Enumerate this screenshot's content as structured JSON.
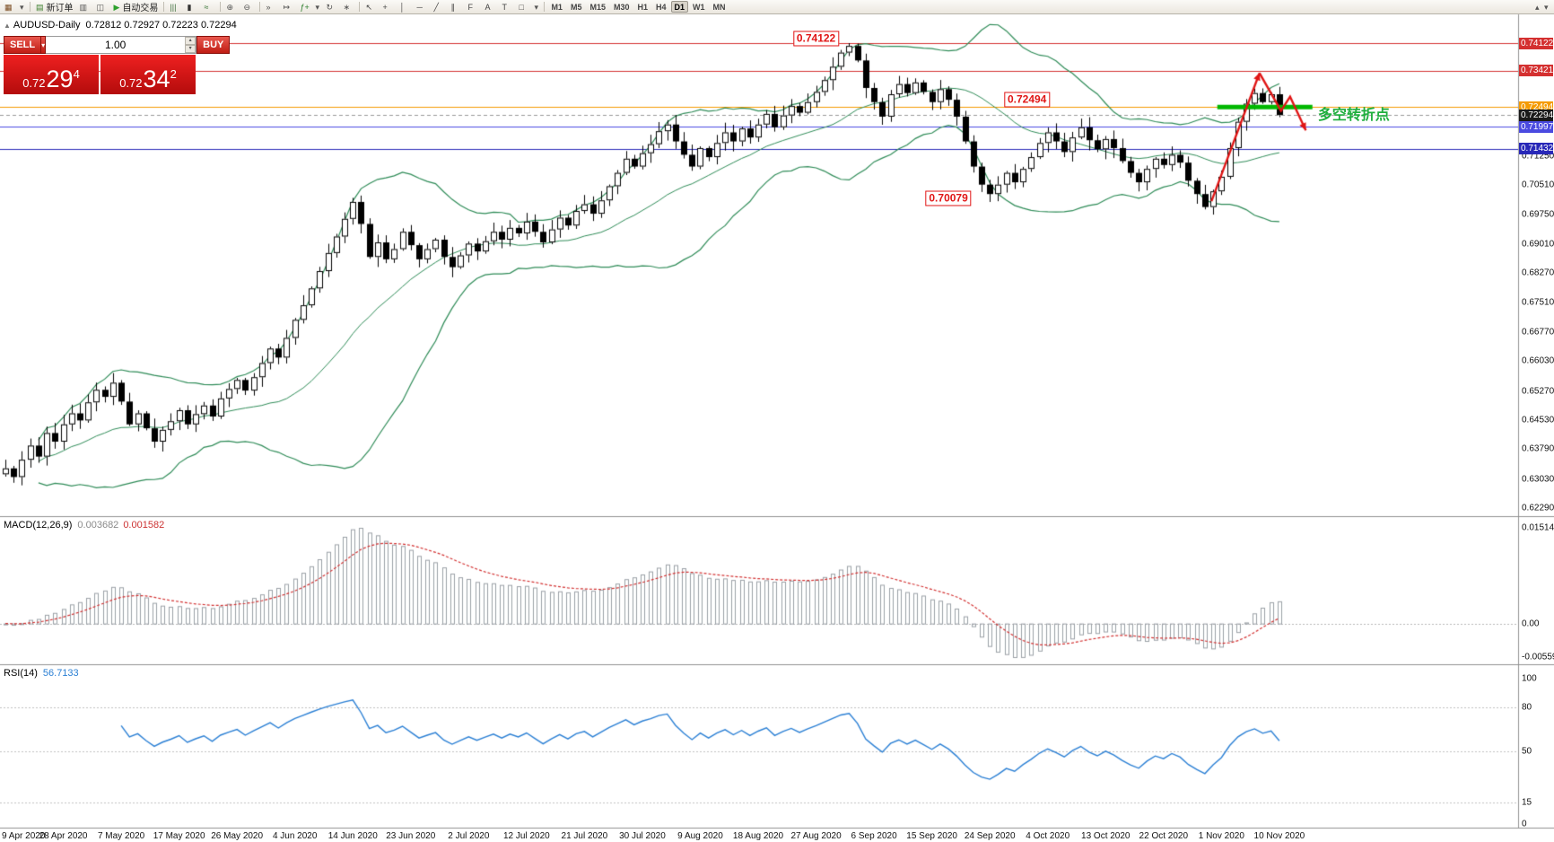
{
  "toolbar": {
    "items": [
      {
        "name": "chart-dropdown-icon",
        "glyph": "▦",
        "color": "#7a4a1f"
      },
      {
        "name": "chart-dropdown-caret-icon",
        "glyph": "▾",
        "narrow": true
      },
      {
        "sep": true
      },
      {
        "name": "new-order-button",
        "glyph": "▤",
        "label": "新订单",
        "color": "#3a7d2c"
      },
      {
        "name": "profiles-icon",
        "glyph": "▥",
        "color": "#555555"
      },
      {
        "name": "tile-windows-icon",
        "glyph": "◫",
        "color": "#555555"
      },
      {
        "name": "autotrade-button",
        "glyph": "▶",
        "label": "自动交易",
        "color": "#2ca02c"
      },
      {
        "sep": true
      },
      {
        "name": "bar-chart-icon",
        "glyph": "|||",
        "color": "#3a6d3a"
      },
      {
        "name": "candlestick-chart-icon",
        "glyph": "▮",
        "color": "#333333"
      },
      {
        "name": "line-chart-icon",
        "glyph": "≈",
        "color": "#2a6d2a"
      },
      {
        "sep": true
      },
      {
        "name": "zoom-in-icon",
        "glyph": "⊕",
        "color": "#555555"
      },
      {
        "name": "zoom-out-icon",
        "glyph": "⊖",
        "color": "#555555"
      },
      {
        "sep": true
      },
      {
        "name": "auto-scroll-icon",
        "glyph": "»",
        "color": "#555555"
      },
      {
        "name": "chart-shift-icon",
        "glyph": "↦",
        "color": "#555555"
      },
      {
        "name": "indicators-icon",
        "glyph": "ƒ+",
        "color": "#2a7d2a"
      },
      {
        "name": "indicators-caret-icon",
        "glyph": "▾",
        "narrow": true
      },
      {
        "name": "periods-icon",
        "glyph": "↻",
        "color": "#555555"
      },
      {
        "name": "templates-icon",
        "glyph": "∗",
        "color": "#555555"
      },
      {
        "sep": true
      },
      {
        "name": "cursor-icon",
        "glyph": "↖",
        "color": "#444444"
      },
      {
        "name": "crosshair-icon",
        "glyph": "+",
        "color": "#444444"
      },
      {
        "name": "vertical-line-icon",
        "glyph": "│",
        "color": "#444444"
      },
      {
        "name": "horizontal-line-icon",
        "glyph": "─",
        "color": "#444444"
      },
      {
        "name": "trendline-icon",
        "glyph": "╱",
        "color": "#444444"
      },
      {
        "name": "channel-icon",
        "glyph": "∥",
        "color": "#444444"
      },
      {
        "name": "fibonacci-icon",
        "glyph": "F",
        "color": "#444444"
      },
      {
        "name": "text-icon",
        "glyph": "A",
        "color": "#444444"
      },
      {
        "name": "text-label-icon",
        "glyph": "T",
        "color": "#444444"
      },
      {
        "name": "shapes-icon",
        "glyph": "□",
        "color": "#444444"
      },
      {
        "name": "shapes-caret-icon",
        "glyph": "▾",
        "narrow": true
      },
      {
        "sep": true
      }
    ],
    "timeframes": [
      "M1",
      "M5",
      "M15",
      "M30",
      "H1",
      "H4",
      "D1",
      "W1",
      "MN"
    ],
    "active_timeframe": "D1",
    "right_items": [
      {
        "name": "toolbar-overflow-up-icon",
        "glyph": "▴"
      },
      {
        "name": "toolbar-overflow-down-icon",
        "glyph": "▾"
      }
    ]
  },
  "chart": {
    "collapse_icon": "▲",
    "symbol_period": "AUDUSD-Daily",
    "ohlc": "0.72812 0.72927 0.72223 0.72294"
  },
  "trade_panel": {
    "sell_label": "SELL",
    "buy_label": "BUY",
    "caret": "▾",
    "volume": "1.00",
    "spin_up": "▴",
    "spin_down": "▾",
    "sell": {
      "prefix": "0.72",
      "big": "29",
      "sup": "4"
    },
    "buy": {
      "prefix": "0.72",
      "big": "34",
      "sup": "2"
    }
  },
  "price_axis": {
    "highlighted": [
      {
        "text": "0.74122",
        "bg": "#d43030"
      },
      {
        "text": "0.73421",
        "bg": "#d43030"
      },
      {
        "text": "0.72494",
        "bg": "#f59b00"
      },
      {
        "text": "0.72294",
        "bg": "#1a1a1a"
      },
      {
        "text": "0.71997",
        "bg": "#4a4ae0"
      },
      {
        "text": "0.71432",
        "bg": "#2828b8"
      }
    ],
    "plain": [
      "0.71250",
      "0.70510",
      "0.69750",
      "0.69010",
      "0.68270",
      "0.67510",
      "0.66770",
      "0.66030",
      "0.65270",
      "0.64530",
      "0.63790",
      "0.63030",
      "0.62290"
    ]
  },
  "chart_data": [
    {
      "type": "candlestick",
      "symbol": "AUDUSD",
      "timeframe": "Daily",
      "ylim": [
        0.6229,
        0.74122
      ],
      "x_labels": [
        "9 Apr 2020",
        "28 Apr 2020",
        "7 May 2020",
        "17 May 2020",
        "26 May 2020",
        "4 Jun 2020",
        "14 Jun 2020",
        "23 Jun 2020",
        "2 Jul 2020",
        "12 Jul 2020",
        "21 Jul 2020",
        "30 Jul 2020",
        "9 Aug 2020",
        "18 Aug 2020",
        "27 Aug 2020",
        "6 Sep 2020",
        "15 Sep 2020",
        "24 Sep 2020",
        "4 Oct 2020",
        "13 Oct 2020",
        "22 Oct 2020",
        "1 Nov 2020",
        "10 Nov 2020"
      ],
      "open_first": 0.6315,
      "closes": [
        0.633,
        0.6308,
        0.6352,
        0.6388,
        0.636,
        0.642,
        0.6398,
        0.6442,
        0.647,
        0.6452,
        0.6498,
        0.653,
        0.6512,
        0.6548,
        0.65,
        0.6442,
        0.647,
        0.6432,
        0.6398,
        0.6428,
        0.645,
        0.6478,
        0.6442,
        0.6468,
        0.649,
        0.6462,
        0.6508,
        0.6532,
        0.6555,
        0.6528,
        0.6562,
        0.6598,
        0.6635,
        0.6612,
        0.6662,
        0.6708,
        0.6745,
        0.6788,
        0.6832,
        0.6878,
        0.692,
        0.6965,
        0.7008,
        0.6952,
        0.6868,
        0.6905,
        0.6862,
        0.6888,
        0.6932,
        0.6898,
        0.6862,
        0.6888,
        0.6912,
        0.6868,
        0.6842,
        0.6872,
        0.6902,
        0.6882,
        0.6908,
        0.6932,
        0.6912,
        0.6942,
        0.6928,
        0.6958,
        0.6932,
        0.6905,
        0.6938,
        0.6968,
        0.6948,
        0.6985,
        0.7002,
        0.6978,
        0.7012,
        0.7048,
        0.7082,
        0.7118,
        0.7098,
        0.7132,
        0.7155,
        0.7188,
        0.7205,
        0.7162,
        0.7128,
        0.7098,
        0.7145,
        0.7122,
        0.7158,
        0.7185,
        0.7162,
        0.7195,
        0.7172,
        0.7205,
        0.7232,
        0.7198,
        0.7228,
        0.7252,
        0.7235,
        0.7262,
        0.7288,
        0.7318,
        0.7352,
        0.7388,
        0.7405,
        0.7368,
        0.7298,
        0.7262,
        0.7225,
        0.7282,
        0.7308,
        0.7285,
        0.7312,
        0.7288,
        0.7262,
        0.7295,
        0.7268,
        0.7225,
        0.7162,
        0.7098,
        0.7052,
        0.7028,
        0.7052,
        0.7082,
        0.7058,
        0.7092,
        0.7122,
        0.7158,
        0.7185,
        0.7162,
        0.7135,
        0.7172,
        0.7198,
        0.7165,
        0.7142,
        0.7168,
        0.7145,
        0.7112,
        0.7082,
        0.7058,
        0.7092,
        0.7118,
        0.7102,
        0.7128,
        0.7108,
        0.7062,
        0.7028,
        0.6995,
        0.7035,
        0.7072,
        0.7145,
        0.7212,
        0.7258,
        0.7285,
        0.7262,
        0.7282,
        0.72294
      ],
      "wick_overrides": {
        "102": {
          "high": 0.74122
        },
        "119": {
          "low": 0.70079
        },
        "145": {
          "low": 0.6989
        }
      },
      "bollinger": {
        "period": 20,
        "deviation": 2,
        "color": "#2e8b57"
      },
      "hlines": [
        {
          "price": 0.74122,
          "color": "#d43030"
        },
        {
          "price": 0.73421,
          "color": "#d43030"
        },
        {
          "price": 0.72494,
          "color": "#f59b00"
        },
        {
          "price": 0.72294,
          "color": "#999999",
          "dash": true
        },
        {
          "price": 0.71997,
          "color": "#4a4ae0"
        },
        {
          "price": 0.71432,
          "color": "#2828b8"
        }
      ],
      "annotations": {
        "peak_label": {
          "text": "0.74122",
          "at": [
            98,
            0.7424
          ]
        },
        "level_label": {
          "text": "0.72494",
          "at": [
            123.5,
            0.7268
          ]
        },
        "low_label": {
          "text": "0.70079",
          "at": [
            114,
            0.7016
          ]
        },
        "turning_text": {
          "text": "多空转折点",
          "color": "#1fae3d",
          "at": [
            163,
            0.7234
          ]
        },
        "green_segment": {
          "price": 0.72494,
          "from_index": 146.5,
          "to_index": 158,
          "color": "#00b800",
          "width": 5
        },
        "red_arrows": {
          "color": "#e01515",
          "up": [
            [
              145.8,
              0.701
            ],
            [
              151.6,
              0.7336
            ]
          ],
          "zigzag": [
            [
              151.6,
              0.7336
            ],
            [
              154.2,
              0.724
            ],
            [
              155.3,
              0.7276
            ],
            [
              157.2,
              0.719
            ]
          ]
        }
      }
    },
    {
      "type": "macd",
      "label": "MACD(12,26,9)",
      "value_main": "0.003682",
      "value_signal": "0.001582",
      "fast": 12,
      "slow": 26,
      "signal": 9,
      "axis_labels": [
        "0.015142",
        "0.00",
        "-0.005595"
      ],
      "histogram_color": "#9aa0a6",
      "signal_color": "#d23030"
    },
    {
      "type": "rsi",
      "label": "RSI(14)",
      "value": "56.7133",
      "period": 14,
      "levels": [
        80,
        50,
        15
      ],
      "axis_labels": [
        "100",
        "80",
        "50",
        "15",
        "0"
      ],
      "line_color": "#2a7fd4"
    }
  ]
}
